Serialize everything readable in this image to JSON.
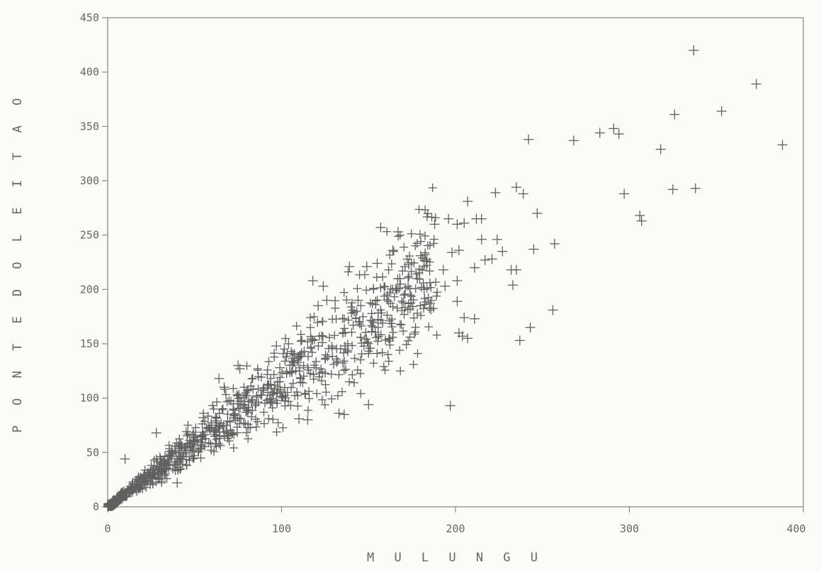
{
  "chart_data": {
    "type": "scatter",
    "title": "",
    "xlabel": "M U L U N G U",
    "ylabel": "P O N T E  D O  L E I T A O",
    "xlim": [
      0,
      400
    ],
    "ylim": [
      0,
      450
    ],
    "xticks": [
      0,
      100,
      200,
      300,
      400
    ],
    "yticks": [
      0,
      50,
      100,
      150,
      200,
      250,
      300,
      350,
      400,
      450
    ],
    "xtick_labels": [
      "0",
      "100",
      "200",
      "300",
      "400"
    ],
    "ytick_labels": [
      "0",
      "50",
      "100",
      "150",
      "200",
      "250",
      "300",
      "350",
      "400",
      "450"
    ],
    "grid": false,
    "legend": "none",
    "marker": "+",
    "series": [
      {
        "points": [
          [
            337,
            420
          ],
          [
            373,
            389
          ],
          [
            353,
            364
          ],
          [
            326,
            361
          ],
          [
            388,
            333
          ],
          [
            242,
            338
          ],
          [
            268,
            337
          ],
          [
            283,
            344
          ],
          [
            291,
            348
          ],
          [
            294,
            343
          ],
          [
            318,
            329
          ],
          [
            325,
            292
          ],
          [
            338,
            293
          ],
          [
            297,
            288
          ],
          [
            306,
            268
          ],
          [
            307,
            263
          ],
          [
            223,
            289
          ],
          [
            235,
            294
          ],
          [
            239,
            288
          ],
          [
            207,
            281
          ],
          [
            212,
            265
          ],
          [
            215,
            265
          ],
          [
            247,
            270
          ],
          [
            157,
            257
          ],
          [
            167,
            253
          ],
          [
            188,
            260
          ],
          [
            196,
            265
          ],
          [
            201,
            260
          ],
          [
            205,
            261
          ],
          [
            215,
            246
          ],
          [
            224,
            246
          ],
          [
            227,
            235
          ],
          [
            217,
            227
          ],
          [
            221,
            228
          ],
          [
            232,
            218
          ],
          [
            235,
            218
          ],
          [
            233,
            204
          ],
          [
            245,
            237
          ],
          [
            257,
            242
          ],
          [
            256,
            181
          ],
          [
            243,
            165
          ],
          [
            237,
            153
          ],
          [
            198,
            234
          ],
          [
            202,
            236
          ],
          [
            180,
            231
          ],
          [
            173,
            223
          ],
          [
            193,
            218
          ],
          [
            211,
            220
          ],
          [
            201,
            208
          ],
          [
            201,
            189
          ],
          [
            202,
            160
          ],
          [
            204,
            157
          ],
          [
            207,
            155
          ],
          [
            205,
            174
          ],
          [
            211,
            173
          ],
          [
            194,
            203
          ],
          [
            182,
            200
          ],
          [
            197,
            93
          ],
          [
            150,
            94
          ],
          [
            133,
            86
          ],
          [
            136,
            85
          ],
          [
            118,
            208
          ],
          [
            124,
            203
          ],
          [
            139,
            221
          ],
          [
            149,
            221
          ],
          [
            155,
            224
          ],
          [
            164,
            236
          ],
          [
            121,
            185
          ],
          [
            144,
            190
          ],
          [
            168,
            210
          ],
          [
            185,
            183
          ],
          [
            126,
            190
          ],
          [
            110,
            81
          ],
          [
            115,
            80
          ],
          [
            82,
            73
          ],
          [
            10,
            44
          ],
          [
            28,
            68
          ],
          [
            75,
            130
          ],
          [
            76,
            127
          ],
          [
            64,
            118
          ],
          [
            67,
            110
          ],
          [
            97,
            148
          ],
          [
            101,
            141
          ],
          [
            55,
            82
          ],
          [
            49,
            66
          ],
          [
            42,
            58
          ],
          [
            40,
            22
          ],
          [
            8,
            12
          ],
          [
            104,
            150
          ],
          [
            113,
            143
          ],
          [
            99,
            128
          ],
          [
            106,
            124
          ],
          [
            171,
            221
          ],
          [
            178,
            210
          ]
        ]
      }
    ],
    "cloud": {
      "slope": 1.15,
      "spread": 0.22,
      "count": 900,
      "x_max": 190
    }
  }
}
